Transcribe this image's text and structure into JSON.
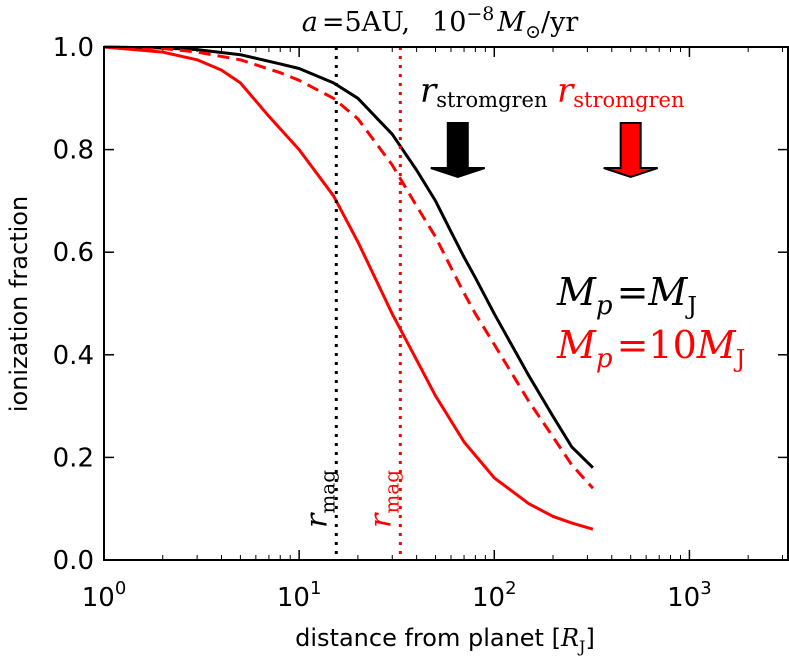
{
  "chart_data": {
    "type": "line",
    "title": "a = 5AU,  10^-8 M_sun/yr",
    "title_parts": {
      "a": "a",
      "eq": "=",
      "au": "5AU,",
      "base": "10",
      "exp": "−8",
      "m": "M",
      "sun": "⊙",
      "rate": "/yr"
    },
    "xlabel": "distance from planet [R_J]",
    "xlabel_parts": {
      "main": "distance from planet [",
      "r": "R",
      "sub": "J",
      "close": "]"
    },
    "ylabel": "ionization fraction",
    "xscale": "log",
    "xlim": [
      1,
      3200
    ],
    "ylim": [
      0,
      1.0
    ],
    "x_ticks": [
      {
        "base": "10",
        "exp": "0",
        "value": 1
      },
      {
        "base": "10",
        "exp": "1",
        "value": 10
      },
      {
        "base": "10",
        "exp": "2",
        "value": 100
      },
      {
        "base": "10",
        "exp": "3",
        "value": 1000
      }
    ],
    "y_ticks": [
      "0.0",
      "0.2",
      "0.4",
      "0.6",
      "0.8",
      "1.0"
    ],
    "grid": false,
    "series": [
      {
        "color": "#000000",
        "style": "solid",
        "x": [
          1,
          2,
          3,
          5,
          8,
          10,
          15,
          20,
          30,
          40,
          50,
          60,
          70,
          80,
          100,
          150,
          200,
          250,
          320
        ],
        "y": [
          1.0,
          0.998,
          0.995,
          0.985,
          0.967,
          0.958,
          0.93,
          0.9,
          0.83,
          0.76,
          0.7,
          0.64,
          0.59,
          0.55,
          0.48,
          0.36,
          0.28,
          0.22,
          0.18
        ]
      },
      {
        "color": "#ff0000",
        "style": "dashed",
        "x": [
          1,
          2,
          3,
          5,
          8,
          10,
          15,
          20,
          30,
          40,
          50,
          60,
          70,
          80,
          100,
          150,
          200,
          250,
          320
        ],
        "y": [
          1.0,
          0.997,
          0.99,
          0.975,
          0.95,
          0.935,
          0.9,
          0.86,
          0.77,
          0.69,
          0.63,
          0.57,
          0.52,
          0.48,
          0.42,
          0.31,
          0.24,
          0.185,
          0.14
        ]
      },
      {
        "color": "#ff0000",
        "style": "solid",
        "x": [
          1,
          2,
          3,
          4,
          5,
          7,
          10,
          15,
          20,
          30,
          40,
          50,
          70,
          100,
          150,
          200,
          250,
          320
        ],
        "y": [
          1.0,
          0.99,
          0.975,
          0.955,
          0.93,
          0.865,
          0.8,
          0.71,
          0.62,
          0.48,
          0.39,
          0.32,
          0.23,
          0.16,
          0.11,
          0.085,
          0.072,
          0.06
        ]
      }
    ],
    "vlines": [
      {
        "x": 15.5,
        "color": "#000000",
        "label": {
          "r": "r",
          "sub": "mag"
        }
      },
      {
        "x": 33,
        "color": "#ff0000",
        "label": {
          "r": "r",
          "sub": "mag"
        }
      }
    ],
    "arrows": [
      {
        "x": 65,
        "color": "#000000",
        "label": {
          "r": "r",
          "sub": "stromgren"
        }
      },
      {
        "x": 500,
        "color": "#ff0000",
        "label": {
          "r": "r",
          "sub": "stromgren"
        }
      }
    ],
    "legend": [
      {
        "color": "#000000",
        "text": {
          "m": "M",
          "p": "p",
          "eq": "=",
          "coef": "",
          "mj": "M",
          "j": "J"
        }
      },
      {
        "color": "#ff0000",
        "text": {
          "m": "M",
          "p": "p",
          "eq": "=",
          "coef": "10",
          "mj": "M",
          "j": "J"
        }
      }
    ],
    "legend_placement": "right"
  }
}
